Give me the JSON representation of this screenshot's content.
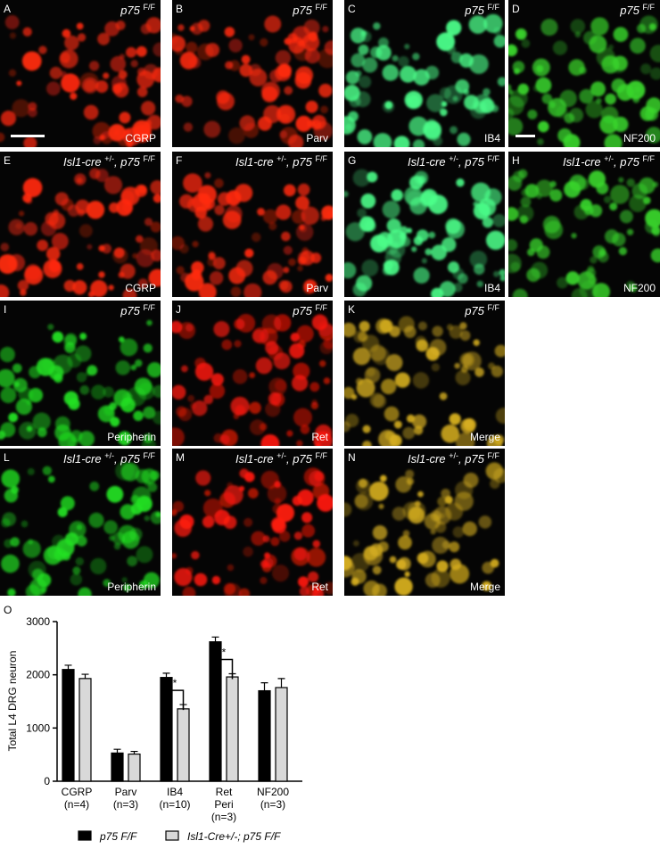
{
  "panels": [
    {
      "letter": "A",
      "genotype": [
        "p75 ",
        "F/F"
      ],
      "marker": "CGRP",
      "color": "#ff2a10"
    },
    {
      "letter": "B",
      "genotype": [
        "p75 ",
        "F/F"
      ],
      "marker": "Parv",
      "color": "#ff2a10"
    },
    {
      "letter": "C",
      "genotype": [
        "p75 ",
        "F/F"
      ],
      "marker": "IB4",
      "color": "#4cff8a"
    },
    {
      "letter": "D",
      "genotype": [
        "p75 ",
        "F/F"
      ],
      "marker": "NF200",
      "color": "#39d62c"
    },
    {
      "letter": "E",
      "genotype": [
        "Isl1-cre ",
        "+/-",
        ", p75 ",
        "F/F"
      ],
      "marker": "CGRP",
      "color": "#ff2a10"
    },
    {
      "letter": "F",
      "genotype": [
        "Isl1-cre ",
        "+/-",
        ", p75 ",
        "F/F"
      ],
      "marker": "Parv",
      "color": "#ff2a10"
    },
    {
      "letter": "G",
      "genotype": [
        "Isl1-cre ",
        "+/-",
        ", p75 ",
        "F/F"
      ],
      "marker": "IB4",
      "color": "#4cff8a"
    },
    {
      "letter": "H",
      "genotype": [
        "Isl1-cre ",
        "+/-",
        ", p75 ",
        "F/F"
      ],
      "marker": "NF200",
      "color": "#39d62c"
    },
    {
      "letter": "I",
      "genotype": [
        "p75 ",
        "F/F"
      ],
      "marker": "Peripherin",
      "color": "#22e022"
    },
    {
      "letter": "J",
      "genotype": [
        "p75 ",
        "F/F"
      ],
      "marker": "Ret",
      "color": "#ff1a0a"
    },
    {
      "letter": "K",
      "genotype": [
        "p75 ",
        "F/F"
      ],
      "marker": "Merge",
      "color": "#d8b020"
    },
    {
      "letter": "L",
      "genotype": [
        "Isl1-cre ",
        "+/-",
        ", p75 ",
        "F/F"
      ],
      "marker": "Peripherin",
      "color": "#22e022"
    },
    {
      "letter": "M",
      "genotype": [
        "Isl1-cre ",
        "+/-",
        ", p75 ",
        "F/F"
      ],
      "marker": "Ret",
      "color": "#ff1a0a"
    },
    {
      "letter": "N",
      "genotype": [
        "Isl1-cre ",
        "+/-",
        ", p75 ",
        "F/F"
      ],
      "marker": "Merge",
      "color": "#d8b020"
    }
  ],
  "chart_data": {
    "type": "bar",
    "panel_letter": "O",
    "y_label": "Total L4 DRG neuron",
    "categories": [
      [
        "CGRP",
        "(n=4)"
      ],
      [
        "Parv",
        "(n=3)"
      ],
      [
        "IB4",
        "(n=10)"
      ],
      [
        "Ret",
        "Peri",
        "(n=3)"
      ],
      [
        "NF200",
        "(n=3)"
      ]
    ],
    "series": [
      {
        "name": "p75 F/F",
        "color": "#000000",
        "values": [
          2100,
          530,
          1950,
          2620,
          1700
        ],
        "errors": [
          80,
          70,
          80,
          90,
          150
        ]
      },
      {
        "name": "Isl1-Cre+/-; p75 F/F",
        "color": "#d9d9d9",
        "values": [
          1930,
          510,
          1360,
          1960,
          1760
        ],
        "errors": [
          80,
          50,
          80,
          60,
          170
        ]
      }
    ],
    "ylim": [
      0,
      3000
    ],
    "yticks": [
      0,
      1000,
      2000,
      3000
    ],
    "annotations": [
      {
        "text": "*",
        "category": 2
      },
      {
        "text": "*",
        "category": 3
      }
    ]
  }
}
